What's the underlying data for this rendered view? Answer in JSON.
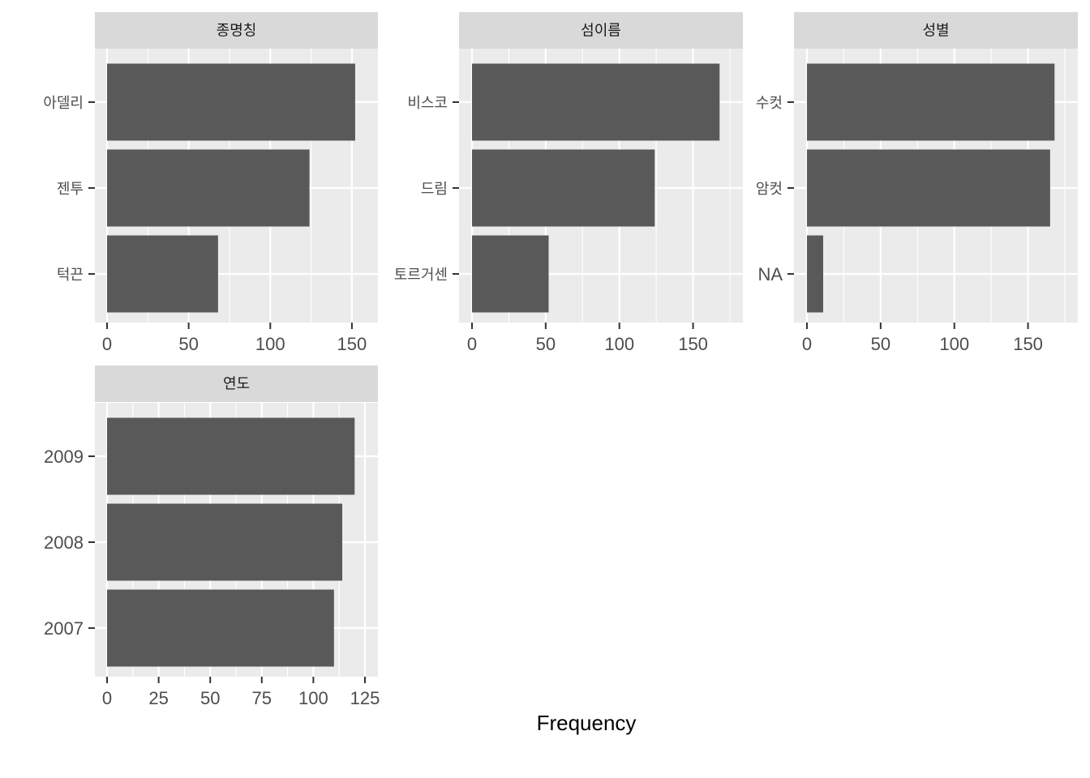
{
  "chart_data": {
    "type": "bar",
    "orientation": "horizontal",
    "xlabel": "Frequency",
    "grid": true,
    "panels": [
      {
        "title": "종명칭",
        "categories": [
          "아델리",
          "젠투",
          "턱끈"
        ],
        "values": [
          152,
          124,
          68
        ],
        "xlim": [
          0,
          158
        ],
        "xticks": [
          0,
          50,
          100,
          150
        ]
      },
      {
        "title": "섬이름",
        "categories": [
          "비스코",
          "드림",
          "토르거센"
        ],
        "values": [
          168,
          124,
          52
        ],
        "xlim": [
          0,
          175
        ],
        "xticks": [
          0,
          50,
          100,
          150
        ]
      },
      {
        "title": "성별",
        "categories": [
          "수컷",
          "암컷",
          "NA"
        ],
        "values": [
          168,
          165,
          11
        ],
        "xlim": [
          0,
          175
        ],
        "xticks": [
          0,
          50,
          100,
          150
        ]
      },
      {
        "title": "연도",
        "categories": [
          "2009",
          "2008",
          "2007"
        ],
        "values": [
          120,
          114,
          110
        ],
        "xlim": [
          0,
          125
        ],
        "xticks": [
          0,
          25,
          50,
          75,
          100,
          125
        ]
      }
    ]
  }
}
